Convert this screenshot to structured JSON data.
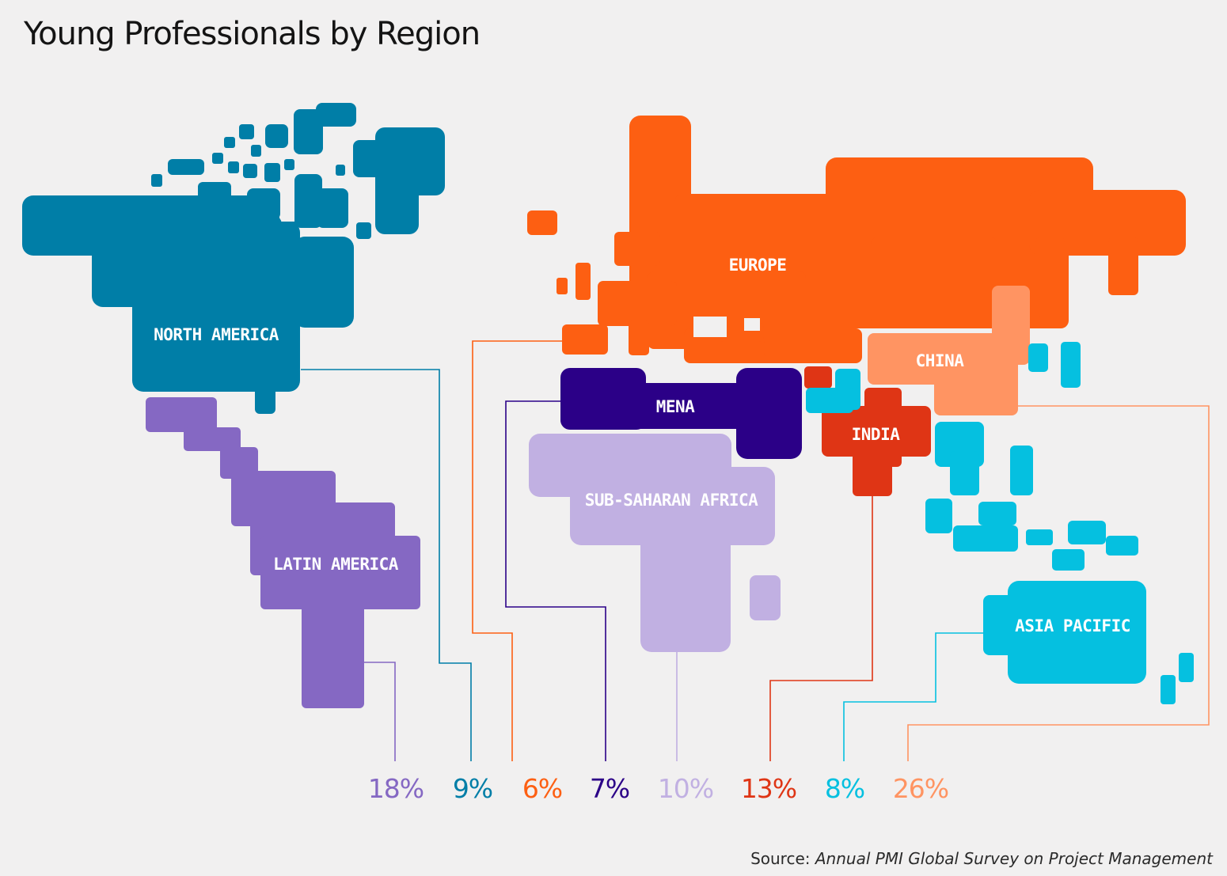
{
  "title": "Young Professionals by Region",
  "source": {
    "prefix": "Source: ",
    "publication": "Annual PMI Global Survey on Project Management"
  },
  "colors": {
    "background": "#f1f0f0",
    "north_america": "#007ea7",
    "latin_america": "#8568c3",
    "europe": "#fd5f12",
    "mena": "#2b0087",
    "sub_saharan_africa": "#c1b0e2",
    "india": "#df3515",
    "china": "#ff9462",
    "asia_pacific": "#05c0e0"
  },
  "regions": [
    {
      "id": "latin_america",
      "label": "LATIN AMERICA",
      "percent": "18%",
      "color": "#8568c3"
    },
    {
      "id": "north_america",
      "label": "NORTH AMERICA",
      "percent": "9%",
      "color": "#007ea7"
    },
    {
      "id": "europe",
      "label": "EUROPE",
      "percent": "6%",
      "color": "#fd5f12"
    },
    {
      "id": "mena",
      "label": "MENA",
      "percent": "7%",
      "color": "#2b0087"
    },
    {
      "id": "sub_saharan_africa",
      "label": "SUB-SAHARAN AFRICA",
      "percent": "10%",
      "color": "#c1b0e2"
    },
    {
      "id": "india",
      "label": "INDIA",
      "percent": "13%",
      "color": "#df3515"
    },
    {
      "id": "asia_pacific",
      "label": "ASIA PACIFIC",
      "percent": "8%",
      "color": "#05c0e0"
    },
    {
      "id": "china",
      "label": "CHINA",
      "percent": "26%",
      "color": "#ff9462"
    }
  ]
}
